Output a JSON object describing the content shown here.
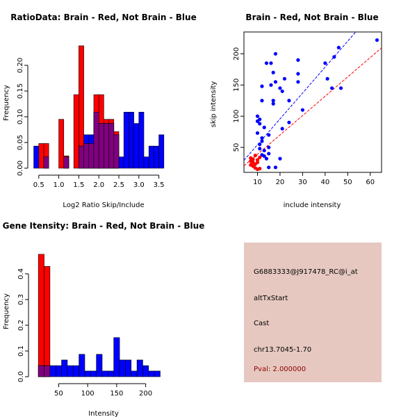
{
  "colors": {
    "brain": "#ff0000",
    "not_brain": "#0000ff",
    "overlap": "#800080",
    "panel_bg": "#e6c8c0",
    "pval_text": "#8b0000"
  },
  "chart_data": [
    {
      "id": "ratio_hist",
      "type": "bar",
      "title": "RatioData: Brain - Red, Not Brain - Blue",
      "xlabel": "Log2 Ratio Skip/Include",
      "ylabel": "Frequency",
      "xlim": [
        0.4,
        3.75
      ],
      "ylim": [
        0,
        0.25
      ],
      "xticks": [
        0.5,
        1.0,
        1.5,
        2.0,
        2.5,
        3.0,
        3.5
      ],
      "xtick_labels": [
        "0.5",
        "1.0",
        "1.5",
        "2.0",
        "2.5",
        "3.0",
        "3.5"
      ],
      "yticks": [
        0,
        0.05,
        0.1,
        0.15,
        0.2
      ],
      "ytick_labels": [
        "0.00",
        "0.05",
        "0.10",
        "0.15",
        "0.20"
      ],
      "bin_width": 0.125,
      "series": [
        {
          "name": "Brain",
          "color": "#ff0000",
          "bin_starts": [
            0.5,
            0.625,
            1.0,
            1.125,
            1.375,
            1.5,
            1.625,
            1.75,
            1.875,
            2.0,
            2.125,
            2.25,
            2.375
          ],
          "values": [
            0.048,
            0.048,
            0.095,
            0.024,
            0.143,
            0.238,
            0.048,
            0.048,
            0.143,
            0.143,
            0.095,
            0.095,
            0.071
          ]
        },
        {
          "name": "Not Brain",
          "color": "#0000ff",
          "bin_starts": [
            0.375,
            0.625,
            1.125,
            1.5,
            1.625,
            1.75,
            1.875,
            2.0,
            2.125,
            2.25,
            2.375,
            2.5,
            2.625,
            2.75,
            2.875,
            3.0,
            3.125,
            3.25,
            3.375,
            3.5
          ],
          "values": [
            0.043,
            0.022,
            0.022,
            0.043,
            0.065,
            0.065,
            0.109,
            0.087,
            0.087,
            0.087,
            0.065,
            0.022,
            0.109,
            0.109,
            0.087,
            0.109,
            0.022,
            0.043,
            0.043,
            0.065
          ]
        }
      ]
    },
    {
      "id": "scatter",
      "type": "scatter",
      "title": "Brain - Red, Not Brain - Blue",
      "xlabel": "include intensity",
      "ylabel": "skip intensity",
      "xlim": [
        4,
        65
      ],
      "ylim": [
        10,
        235
      ],
      "xticks": [
        10,
        20,
        30,
        40,
        50,
        60
      ],
      "yticks": [
        50,
        100,
        150,
        200
      ],
      "series": [
        {
          "name": "Not Brain",
          "color": "#0000ff",
          "points": [
            [
              10,
              100
            ],
            [
              10,
              92
            ],
            [
              10,
              73
            ],
            [
              11,
              95
            ],
            [
              11,
              88
            ],
            [
              11,
              55
            ],
            [
              11,
              48
            ],
            [
              12,
              148
            ],
            [
              12,
              125
            ],
            [
              12,
              60
            ],
            [
              12,
              65
            ],
            [
              12,
              38
            ],
            [
              13,
              82
            ],
            [
              13,
              45
            ],
            [
              13,
              36
            ],
            [
              14,
              185
            ],
            [
              14,
              32
            ],
            [
              15,
              70
            ],
            [
              15,
              50
            ],
            [
              15,
              40
            ],
            [
              15,
              18
            ],
            [
              16,
              150
            ],
            [
              16,
              185
            ],
            [
              17,
              170
            ],
            [
              17,
              125
            ],
            [
              17,
              120
            ],
            [
              18,
              200
            ],
            [
              18,
              155
            ],
            [
              18,
              18
            ],
            [
              20,
              145
            ],
            [
              20,
              32
            ],
            [
              21,
              80
            ],
            [
              21,
              140
            ],
            [
              22,
              160
            ],
            [
              24,
              125
            ],
            [
              24,
              90
            ],
            [
              28,
              190
            ],
            [
              28,
              155
            ],
            [
              28,
              168
            ],
            [
              30,
              110
            ],
            [
              40,
              185
            ],
            [
              41,
              160
            ],
            [
              43,
              145
            ],
            [
              44,
              195
            ],
            [
              46,
              210
            ],
            [
              47,
              145
            ],
            [
              63,
              222
            ]
          ]
        },
        {
          "name": "Brain",
          "color": "#ff0000",
          "points": [
            [
              7,
              33
            ],
            [
              7,
              28
            ],
            [
              7,
              22
            ],
            [
              8,
              20
            ],
            [
              8,
              26
            ],
            [
              8,
              31
            ],
            [
              9,
              23
            ],
            [
              9,
              17
            ],
            [
              9,
              37
            ],
            [
              10,
              30
            ],
            [
              10,
              26
            ],
            [
              10,
              15
            ],
            [
              11,
              34
            ],
            [
              11,
              16
            ]
          ]
        }
      ],
      "lines": [
        {
          "color": "#0000ff",
          "dashed": true,
          "intercept": 12.7,
          "slope": 4.15
        },
        {
          "color": "#ff0000",
          "dashed": true,
          "intercept": 8.0,
          "slope": 3.1
        }
      ]
    },
    {
      "id": "intensity_hist",
      "type": "bar",
      "title": "Gene Itensity: Brain - Red, Not Brain - Blue",
      "xlabel": "Intensity",
      "ylabel": "Frequency",
      "xlim": [
        10,
        240
      ],
      "ylim": [
        0,
        0.5
      ],
      "xticks": [
        50,
        100,
        150,
        200
      ],
      "xtick_labels": [
        "50",
        "100",
        "150",
        "200"
      ],
      "yticks": [
        0,
        0.1,
        0.2,
        0.3,
        0.4
      ],
      "ytick_labels": [
        "0.0",
        "0.1",
        "0.2",
        "0.3",
        "0.4"
      ],
      "bin_width": 10,
      "series": [
        {
          "name": "Brain",
          "color": "#ff0000",
          "bin_starts": [
            15,
            25
          ],
          "values": [
            0.476,
            0.429
          ]
        },
        {
          "name": "Not Brain",
          "color": "#0000ff",
          "bin_starts": [
            15,
            25,
            35,
            45,
            55,
            65,
            75,
            85,
            95,
            105,
            115,
            125,
            135,
            145,
            155,
            165,
            175,
            185,
            195,
            205,
            215
          ],
          "values": [
            0.043,
            0.043,
            0.043,
            0.043,
            0.065,
            0.043,
            0.043,
            0.087,
            0.022,
            0.022,
            0.087,
            0.022,
            0.022,
            0.152,
            0.065,
            0.065,
            0.022,
            0.065,
            0.043,
            0.022,
            0.022
          ]
        }
      ]
    }
  ],
  "info": {
    "probe_id": "G6883333@J917478_RC@i_at",
    "event_type": "altTxStart",
    "gene": "Cast",
    "location": "chr13.7045-1.70",
    "pval": "Pval: 2.000000"
  }
}
